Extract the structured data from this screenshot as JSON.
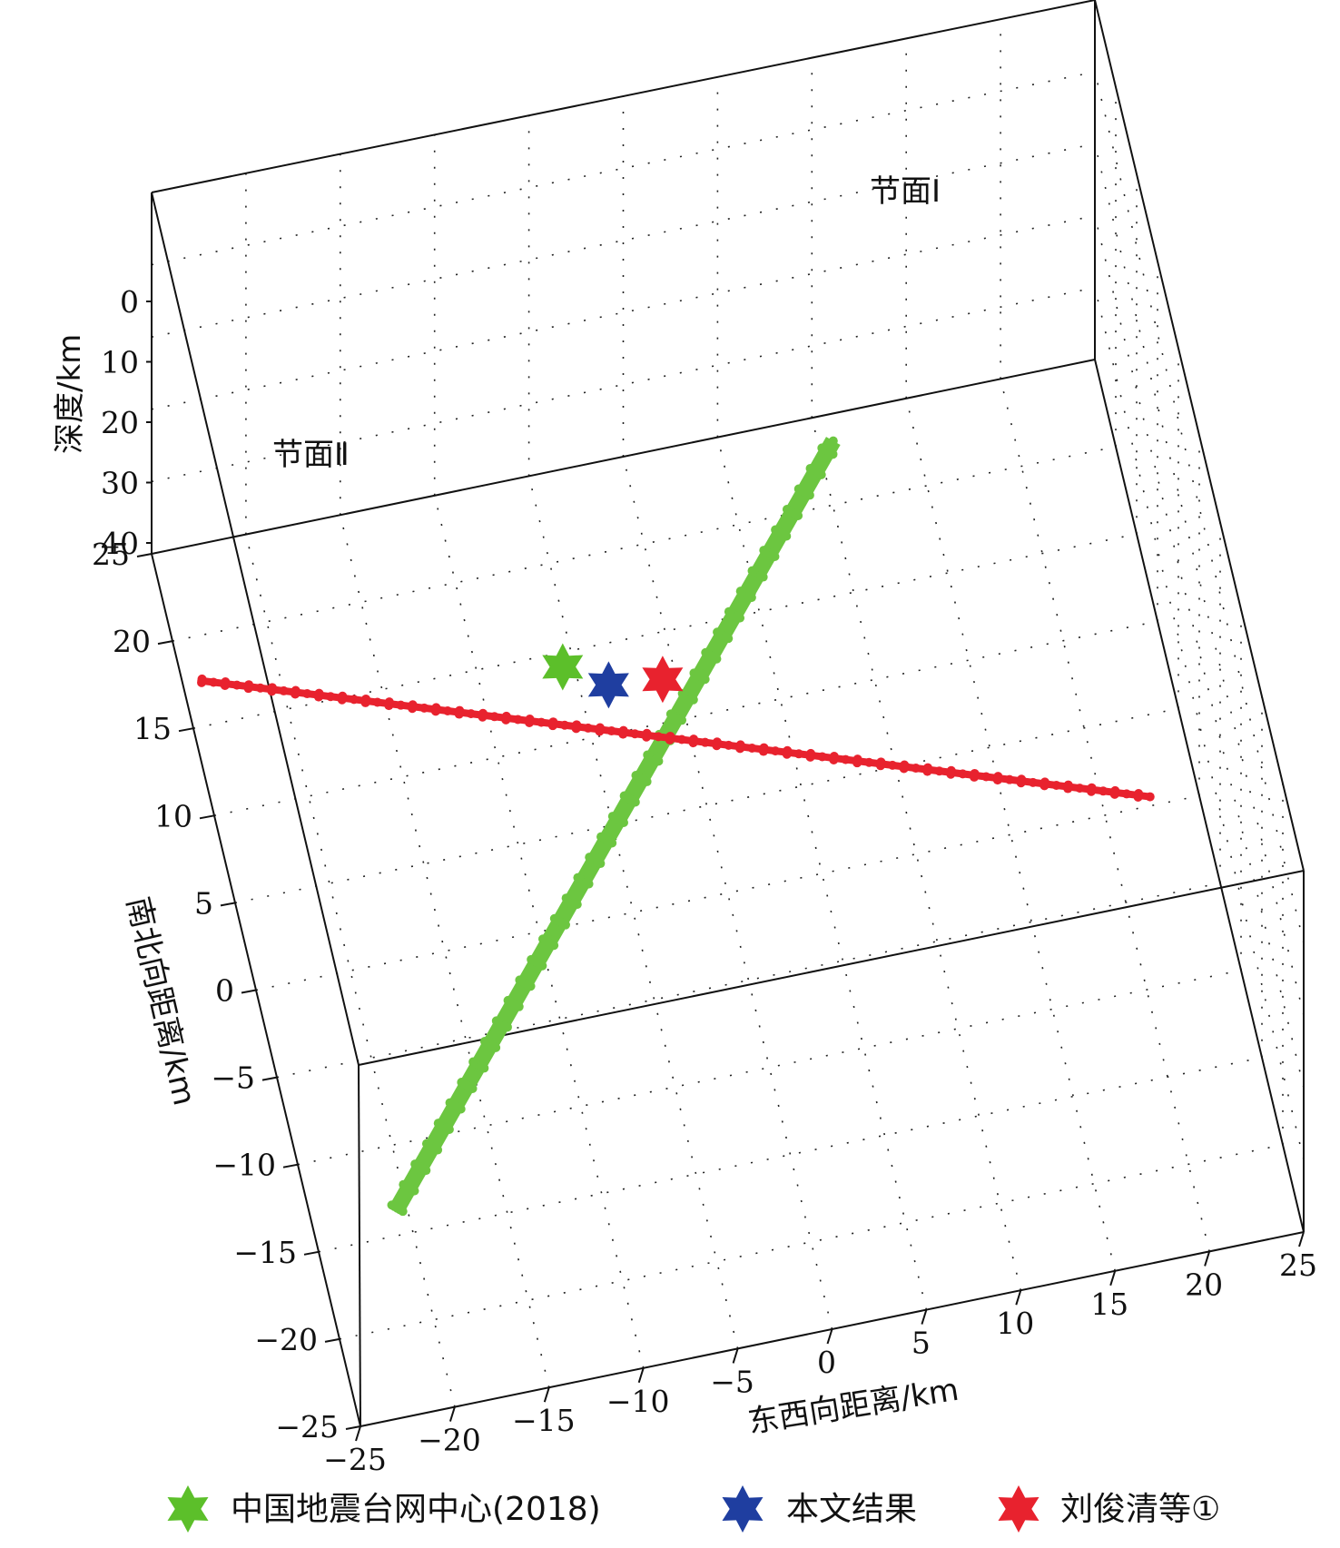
{
  "chart_data": {
    "type": "scatter3d",
    "xlabel": "东西向距离/km",
    "ylabel": "南北向距离/km",
    "zlabel": "深度/km",
    "x_ticks": [
      "−25",
      "−20",
      "−15",
      "−10",
      "−5",
      "0",
      "5",
      "10",
      "15",
      "20",
      "25"
    ],
    "y_ticks": [
      "−25",
      "−20",
      "−15",
      "−10",
      "−5",
      "0",
      "5",
      "10",
      "15",
      "20",
      "25"
    ],
    "z_ticks": [
      "0",
      "10",
      "20",
      "30",
      "40"
    ],
    "xlim": [
      -25,
      25
    ],
    "ylim": [
      -25,
      25
    ],
    "zlim": [
      0,
      40
    ],
    "grid": true,
    "colors": {
      "plane1": "#6cc640",
      "plane2": "#e8222e",
      "china_center": "#5cbf2a",
      "this_study": "#1f3ea0",
      "liu": "#e8222e"
    },
    "planes": [
      {
        "label": "节面Ⅰ",
        "endpoints": [
          [
            -20.5,
            -13.5
          ],
          [
            10.8,
            23.5
          ]
        ]
      },
      {
        "label": "节面Ⅱ",
        "endpoints": [
          [
            -24,
            17.5
          ],
          [
            22.5,
            0.5
          ]
        ]
      }
    ],
    "hypocenters": [
      {
        "x": -5.6,
        "y": 14.2
      },
      {
        "x": -3.5,
        "y": 12.7
      },
      {
        "x": -0.7,
        "y": 12.4
      }
    ],
    "legend": {
      "position": "bottom",
      "items": [
        {
          "label": "中国地震台网中心(2018)"
        },
        {
          "label": "本文结果"
        },
        {
          "label": "刘俊清等①"
        }
      ]
    }
  }
}
